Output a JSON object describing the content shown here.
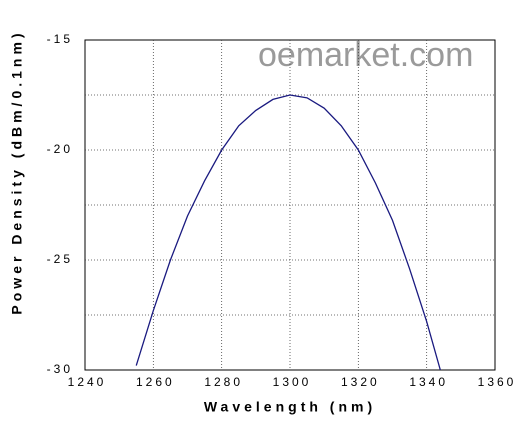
{
  "chart_data": {
    "type": "line",
    "watermark": "oemarket.com",
    "xlabel": "Wavelength (nm)",
    "ylabel": "Power Density (dBm/0.1nm)",
    "x": [
      1255,
      1260,
      1265,
      1270,
      1275,
      1280,
      1285,
      1290,
      1295,
      1300,
      1305,
      1310,
      1315,
      1320,
      1325,
      1330,
      1335,
      1340,
      1344
    ],
    "series": [
      {
        "color": "#1a1a80",
        "values": [
          -29.8,
          -27.3,
          -25.0,
          -23.0,
          -21.4,
          -20.0,
          -18.9,
          -18.2,
          -17.7,
          -17.5,
          -17.63,
          -18.1,
          -18.9,
          -20.0,
          -21.5,
          -23.2,
          -25.4,
          -27.8,
          -30.0
        ]
      }
    ],
    "xlim": [
      1240,
      1360
    ],
    "xticks": [
      1240,
      1260,
      1280,
      1300,
      1320,
      1340,
      1360
    ],
    "ylim": [
      -30,
      -15
    ],
    "yticks": [
      -15,
      -20,
      -25,
      -30
    ],
    "grid": true,
    "y_minor_grid": true
  }
}
